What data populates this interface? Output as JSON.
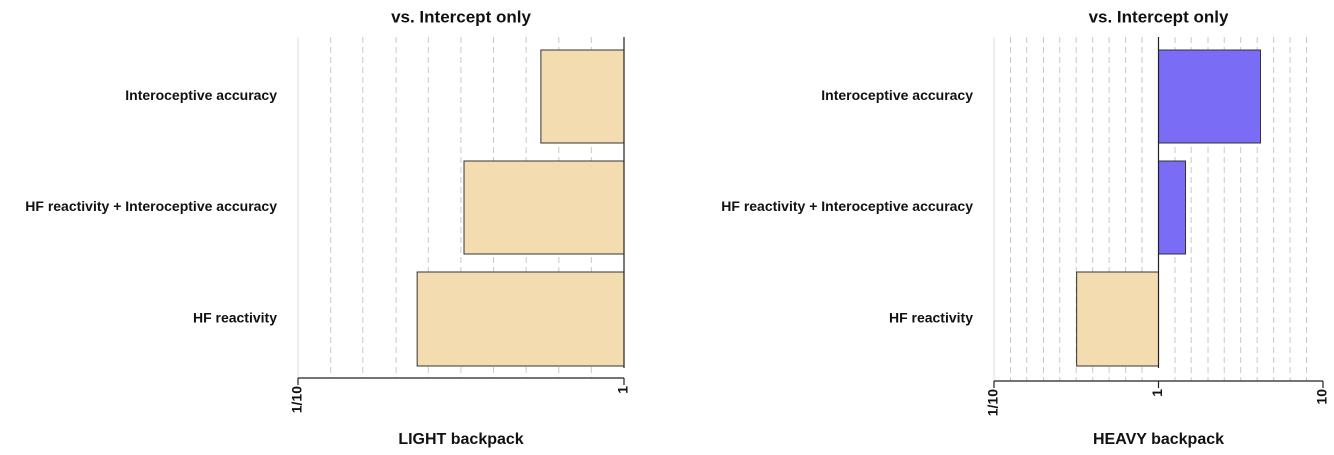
{
  "chart_data": [
    {
      "type": "bar",
      "orientation": "horizontal",
      "title": "vs. Intercept only",
      "xlabel": "LIGHT backpack",
      "categories": [
        "Interoceptive accuracy",
        "HF reactivity + Interoceptive accuracy",
        "HF reactivity"
      ],
      "values": [
        0.556,
        0.323,
        0.232
      ],
      "colors": [
        "#f3dcb0",
        "#f3dcb0",
        "#f3dcb0"
      ],
      "xscale": "log",
      "baseline": 1,
      "xlim": [
        0.1,
        1
      ],
      "xticks": [
        {
          "value": 0.1,
          "label": "1/10"
        },
        1
      ],
      "xgrid": [
        0.126,
        0.158,
        0.2,
        0.251,
        0.316,
        0.398,
        0.501,
        0.631,
        0.794
      ]
    },
    {
      "type": "bar",
      "orientation": "horizontal",
      "title": "vs. Intercept only",
      "xlabel": "HEAVY backpack",
      "categories": [
        "Interoceptive accuracy",
        "HF reactivity + Interoceptive accuracy",
        "HF reactivity"
      ],
      "values": [
        4.17,
        1.46,
        0.318
      ],
      "colors": [
        "#7b6cf6",
        "#7b6cf6",
        "#f3dcb0"
      ],
      "xscale": "log",
      "baseline": 1,
      "xlim": [
        0.1,
        10
      ],
      "xticks": [
        {
          "value": 0.1,
          "label": "1/10"
        },
        1,
        10
      ],
      "xgrid": [
        0.126,
        0.158,
        0.2,
        0.251,
        0.316,
        0.398,
        0.501,
        0.631,
        0.794,
        1.26,
        1.58,
        2,
        2.51,
        3.16,
        3.98,
        5.01,
        6.31,
        7.94
      ]
    }
  ]
}
